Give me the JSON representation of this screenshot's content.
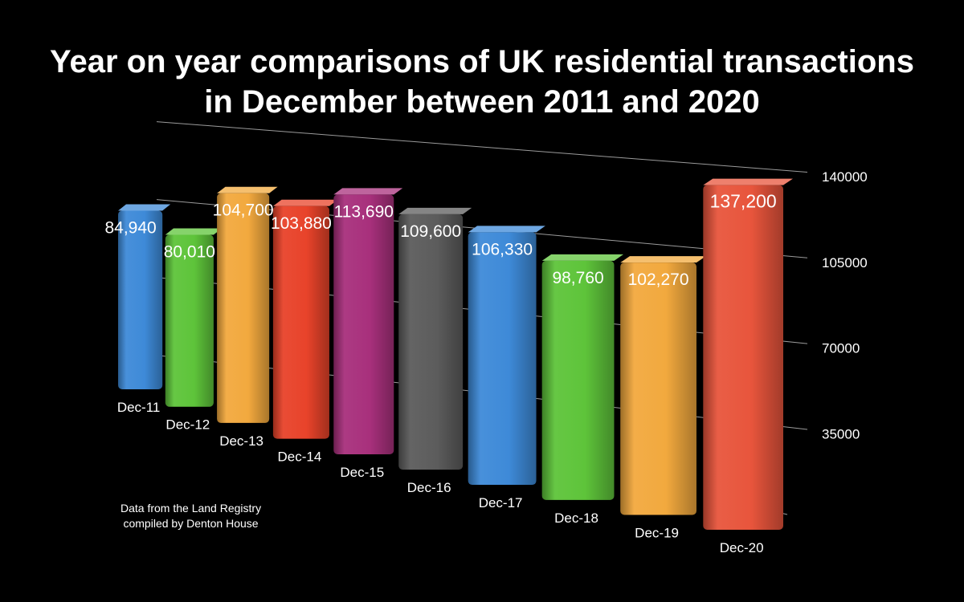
{
  "chart_data": {
    "type": "bar",
    "title": "Year on year comparisons of UK residential transactions in December between 2011 and 2020",
    "title_lines": [
      "Year on year comparisons of UK residential transactions",
      "in December between 2011 and 2020"
    ],
    "categories": [
      "Dec-11",
      "Dec-12",
      "Dec-13",
      "Dec-14",
      "Dec-15",
      "Dec-16",
      "Dec-17",
      "Dec-18",
      "Dec-19",
      "Dec-20"
    ],
    "values": [
      84940,
      80010,
      104700,
      103880,
      113690,
      109600,
      106330,
      98760,
      102270,
      137200
    ],
    "data_labels": [
      "84,940",
      "80,010",
      "104,700",
      "103,880",
      "113,690",
      "109,600",
      "106,330",
      "98,760",
      "102,270",
      "137,200"
    ],
    "colors": [
      "#3e8ad8",
      "#5ec43a",
      "#f2a93e",
      "#e8432a",
      "#a8307c",
      "#5c5c5c",
      "#3e8ad8",
      "#5ec43a",
      "#f2a93e",
      "#e8553c"
    ],
    "yticks": [
      35000,
      70000,
      105000,
      140000
    ],
    "ylim": [
      0,
      140000
    ],
    "grid": true,
    "legend": "none",
    "xlabel": "",
    "ylabel": ""
  },
  "note": {
    "line1": "Data from the Land Registry",
    "line2": "compiled by Denton House"
  }
}
